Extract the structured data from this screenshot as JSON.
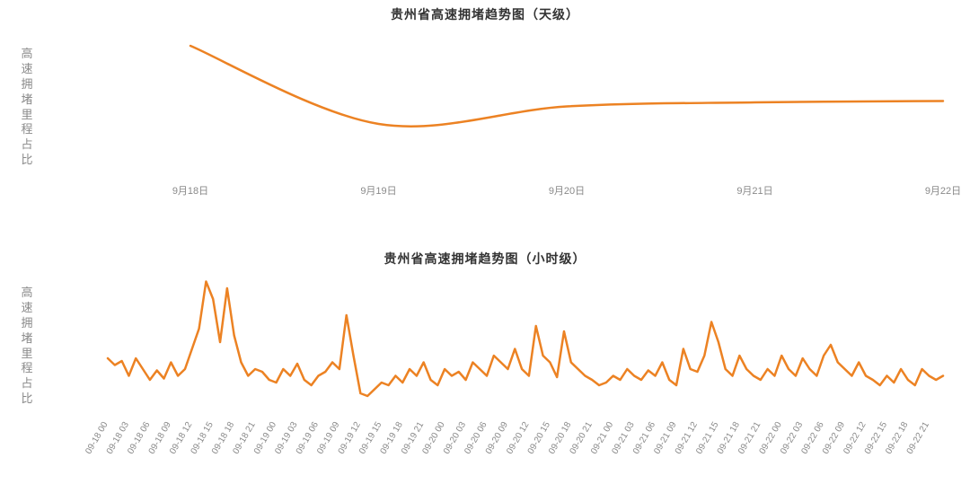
{
  "background_color": "#ffffff",
  "series_color": "#ec8223",
  "axis_color": "#dcdcdc",
  "label_color": "#8a8a8a",
  "title_color": "#333333",
  "ylabel": "高速拥堵里程占比",
  "chart_day": {
    "type": "line",
    "title": "贵州省高速拥堵趋势图（天级）",
    "title_fontsize": 14,
    "x_labels": [
      "9月18日",
      "9月19日",
      "9月20日",
      "9月21日",
      "9月22日"
    ],
    "values": [
      0.9,
      0.32,
      0.45,
      0.48,
      0.49
    ],
    "ylim": [
      0,
      1
    ],
    "line_width": 2.5,
    "xlabel_fontsize": 11
  },
  "chart_hour": {
    "type": "line",
    "title": "贵州省高速拥堵趋势图（小时级）",
    "title_fontsize": 14,
    "x_labels": [
      "09-18 00",
      "09-18 03",
      "09-18 06",
      "09-18 09",
      "09-18 12",
      "09-18 15",
      "09-18 18",
      "09-18 21",
      "09-19 00",
      "09-19 03",
      "09-19 06",
      "09-19 09",
      "09-19 12",
      "09-19 15",
      "09-19 18",
      "09-19 21",
      "09-20 00",
      "09-20 03",
      "09-20 06",
      "09-20 09",
      "09-20 12",
      "09-20 15",
      "09-20 18",
      "09-20 21",
      "09-21 00",
      "09-21 03",
      "09-21 06",
      "09-21 09",
      "09-21 12",
      "09-21 15",
      "09-21 18",
      "09-21 21",
      "09-22 00",
      "09-22 03",
      "09-22 06",
      "09-22 09",
      "09-22 12",
      "09-22 15",
      "09-22 18",
      "09-22 21"
    ],
    "values_per_hour": [
      0.38,
      0.33,
      0.36,
      0.25,
      0.38,
      0.3,
      0.22,
      0.29,
      0.23,
      0.35,
      0.25,
      0.3,
      0.45,
      0.6,
      0.95,
      0.82,
      0.5,
      0.9,
      0.55,
      0.35,
      0.25,
      0.3,
      0.28,
      0.22,
      0.2,
      0.3,
      0.25,
      0.34,
      0.22,
      0.18,
      0.25,
      0.28,
      0.35,
      0.3,
      0.7,
      0.4,
      0.12,
      0.1,
      0.15,
      0.2,
      0.18,
      0.25,
      0.2,
      0.3,
      0.25,
      0.35,
      0.22,
      0.18,
      0.3,
      0.25,
      0.28,
      0.22,
      0.35,
      0.3,
      0.25,
      0.4,
      0.35,
      0.3,
      0.45,
      0.3,
      0.25,
      0.62,
      0.4,
      0.35,
      0.24,
      0.58,
      0.35,
      0.3,
      0.25,
      0.22,
      0.18,
      0.2,
      0.25,
      0.22,
      0.3,
      0.25,
      0.22,
      0.29,
      0.25,
      0.35,
      0.22,
      0.18,
      0.45,
      0.3,
      0.28,
      0.4,
      0.65,
      0.5,
      0.3,
      0.25,
      0.4,
      0.3,
      0.25,
      0.22,
      0.3,
      0.25,
      0.4,
      0.3,
      0.25,
      0.38,
      0.3,
      0.25,
      0.4,
      0.48,
      0.35,
      0.3,
      0.25,
      0.35,
      0.25,
      0.22,
      0.18,
      0.25,
      0.2,
      0.3,
      0.22,
      0.18,
      0.3,
      0.25,
      0.22,
      0.25
    ],
    "ylim": [
      0,
      1
    ],
    "line_width": 2.5,
    "xlabel_fontsize": 10,
    "xlabel_rotation_deg": -60
  }
}
